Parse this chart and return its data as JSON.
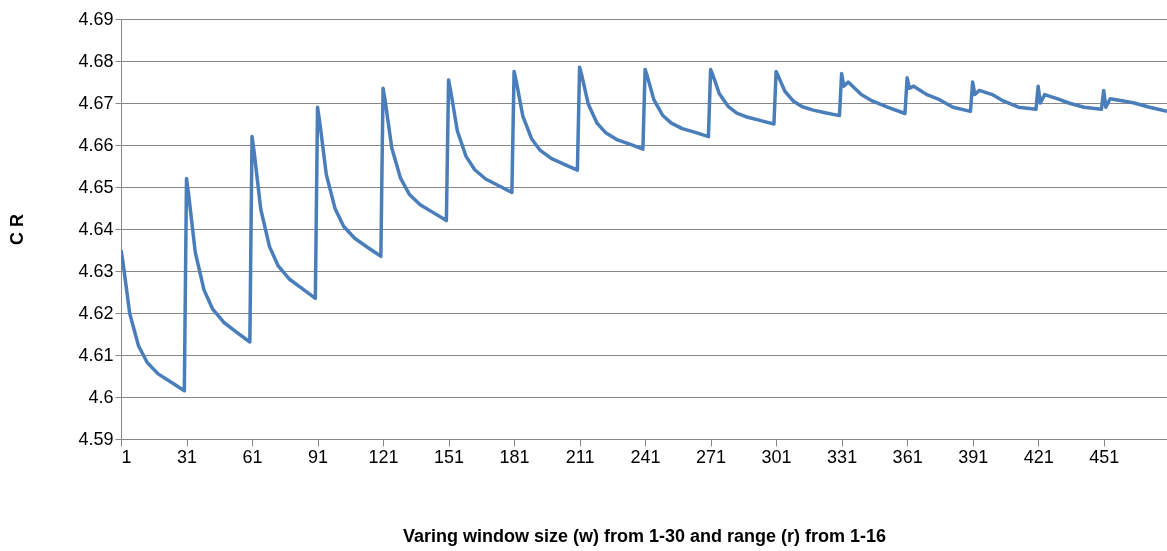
{
  "chart_data": {
    "type": "line",
    "xlabel": "Varing window size (w) from 1-30 and range (r) from 1-16",
    "ylabel": "C R",
    "x": [
      1,
      2,
      5,
      9,
      13,
      18,
      24,
      30,
      31,
      32,
      35,
      39,
      43,
      48,
      54,
      60,
      61,
      62,
      65,
      69,
      73,
      78,
      84,
      90,
      91,
      92,
      95,
      99,
      103,
      108,
      114,
      120,
      121,
      122,
      125,
      129,
      133,
      138,
      144,
      150,
      151,
      152,
      155,
      159,
      163,
      168,
      174,
      180,
      181,
      182,
      185,
      189,
      193,
      198,
      204,
      210,
      211,
      212,
      215,
      219,
      223,
      228,
      234,
      240,
      241,
      242,
      245,
      249,
      253,
      258,
      264,
      270,
      271,
      272,
      275,
      279,
      283,
      288,
      294,
      300,
      301,
      302,
      305,
      309,
      313,
      318,
      324,
      330,
      331,
      332,
      334,
      340,
      345,
      352,
      360,
      361,
      362,
      364,
      370,
      375,
      382,
      390,
      391,
      392,
      394,
      400,
      405,
      412,
      420,
      421,
      422,
      424,
      430,
      435,
      442,
      450,
      451,
      452,
      454,
      460,
      465,
      472,
      480
    ],
    "series": [
      {
        "color": "#4a7ebb",
        "values": [
          4.635,
          4.6317,
          4.6199,
          4.6122,
          4.6082,
          4.6055,
          4.6035,
          4.6015,
          4.652,
          4.6481,
          4.6345,
          4.6255,
          4.6209,
          4.6178,
          4.6154,
          4.6131,
          4.662,
          4.6582,
          4.6447,
          4.6358,
          4.6312,
          4.6281,
          4.6258,
          4.6235,
          4.669,
          4.6655,
          4.653,
          4.6449,
          4.6406,
          4.6378,
          4.6356,
          4.6335,
          4.6735,
          4.6704,
          4.6593,
          4.6521,
          4.6483,
          4.6458,
          4.6439,
          4.642,
          4.6755,
          4.6728,
          4.6634,
          4.6573,
          4.6541,
          4.6519,
          4.6503,
          4.6487,
          4.6775,
          4.6752,
          4.6669,
          4.6615,
          4.6587,
          4.6568,
          4.6554,
          4.654,
          4.6785,
          4.6766,
          4.6697,
          4.6652,
          4.6629,
          4.6613,
          4.6602,
          4.659,
          4.678,
          4.6764,
          4.6708,
          4.6671,
          4.6652,
          4.6639,
          4.663,
          4.662,
          4.678,
          4.6767,
          4.6722,
          4.6692,
          4.6676,
          4.6666,
          4.6658,
          4.665,
          4.6775,
          4.6764,
          4.6728,
          4.6704,
          4.6691,
          4.6683,
          4.6676,
          4.667,
          4.677,
          4.674,
          4.675,
          4.672,
          4.6705,
          4.669,
          4.6675,
          4.676,
          4.6735,
          4.674,
          4.672,
          4.671,
          4.669,
          4.668,
          4.675,
          4.672,
          4.673,
          4.672,
          4.6705,
          4.669,
          4.6685,
          4.674,
          4.67,
          4.672,
          4.671,
          4.67,
          4.669,
          4.6685,
          4.673,
          4.669,
          4.671,
          4.6705,
          4.67,
          4.669,
          4.668
        ]
      }
    ],
    "xlim": [
      1,
      480
    ],
    "xticks": [
      1,
      31,
      61,
      91,
      121,
      151,
      181,
      211,
      241,
      271,
      301,
      331,
      361,
      391,
      421,
      451
    ],
    "ylim": [
      4.59,
      4.69
    ],
    "yticks": [
      4.59,
      4.6,
      4.61,
      4.62,
      4.63,
      4.64,
      4.65,
      4.66,
      4.67,
      4.68,
      4.69
    ],
    "grid": "y",
    "legend": false,
    "marker": "none",
    "line_style": "solid"
  }
}
